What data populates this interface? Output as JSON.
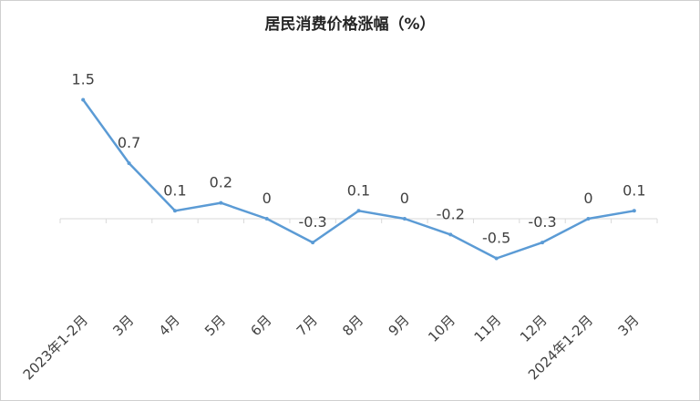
{
  "chart_data": {
    "type": "line",
    "title": "居民消费价格涨幅（%）",
    "categories": [
      "2023年1-2月",
      "3月",
      "4月",
      "5月",
      "6月",
      "7月",
      "8月",
      "9月",
      "10月",
      "11月",
      "12月",
      "2024年1-2月",
      "3月"
    ],
    "series": [
      {
        "values": [
          1.5,
          0.7,
          0.1,
          0.2,
          0,
          -0.3,
          0.1,
          0,
          -0.2,
          -0.5,
          -0.3,
          0,
          0.1
        ],
        "labels": [
          "1.5",
          "0.7",
          "0.1",
          "0.2",
          "0",
          "-0.3",
          "0.1",
          "0",
          "-0.2",
          "-0.5",
          "-0.3",
          "0",
          "0.1"
        ]
      }
    ],
    "xlabel": "",
    "ylabel": "",
    "ylim": [
      -1.0,
      1.5
    ],
    "line_color": "#5b9bd5",
    "axis_color": "#d9d9d9",
    "grid": false,
    "legend": "none"
  }
}
